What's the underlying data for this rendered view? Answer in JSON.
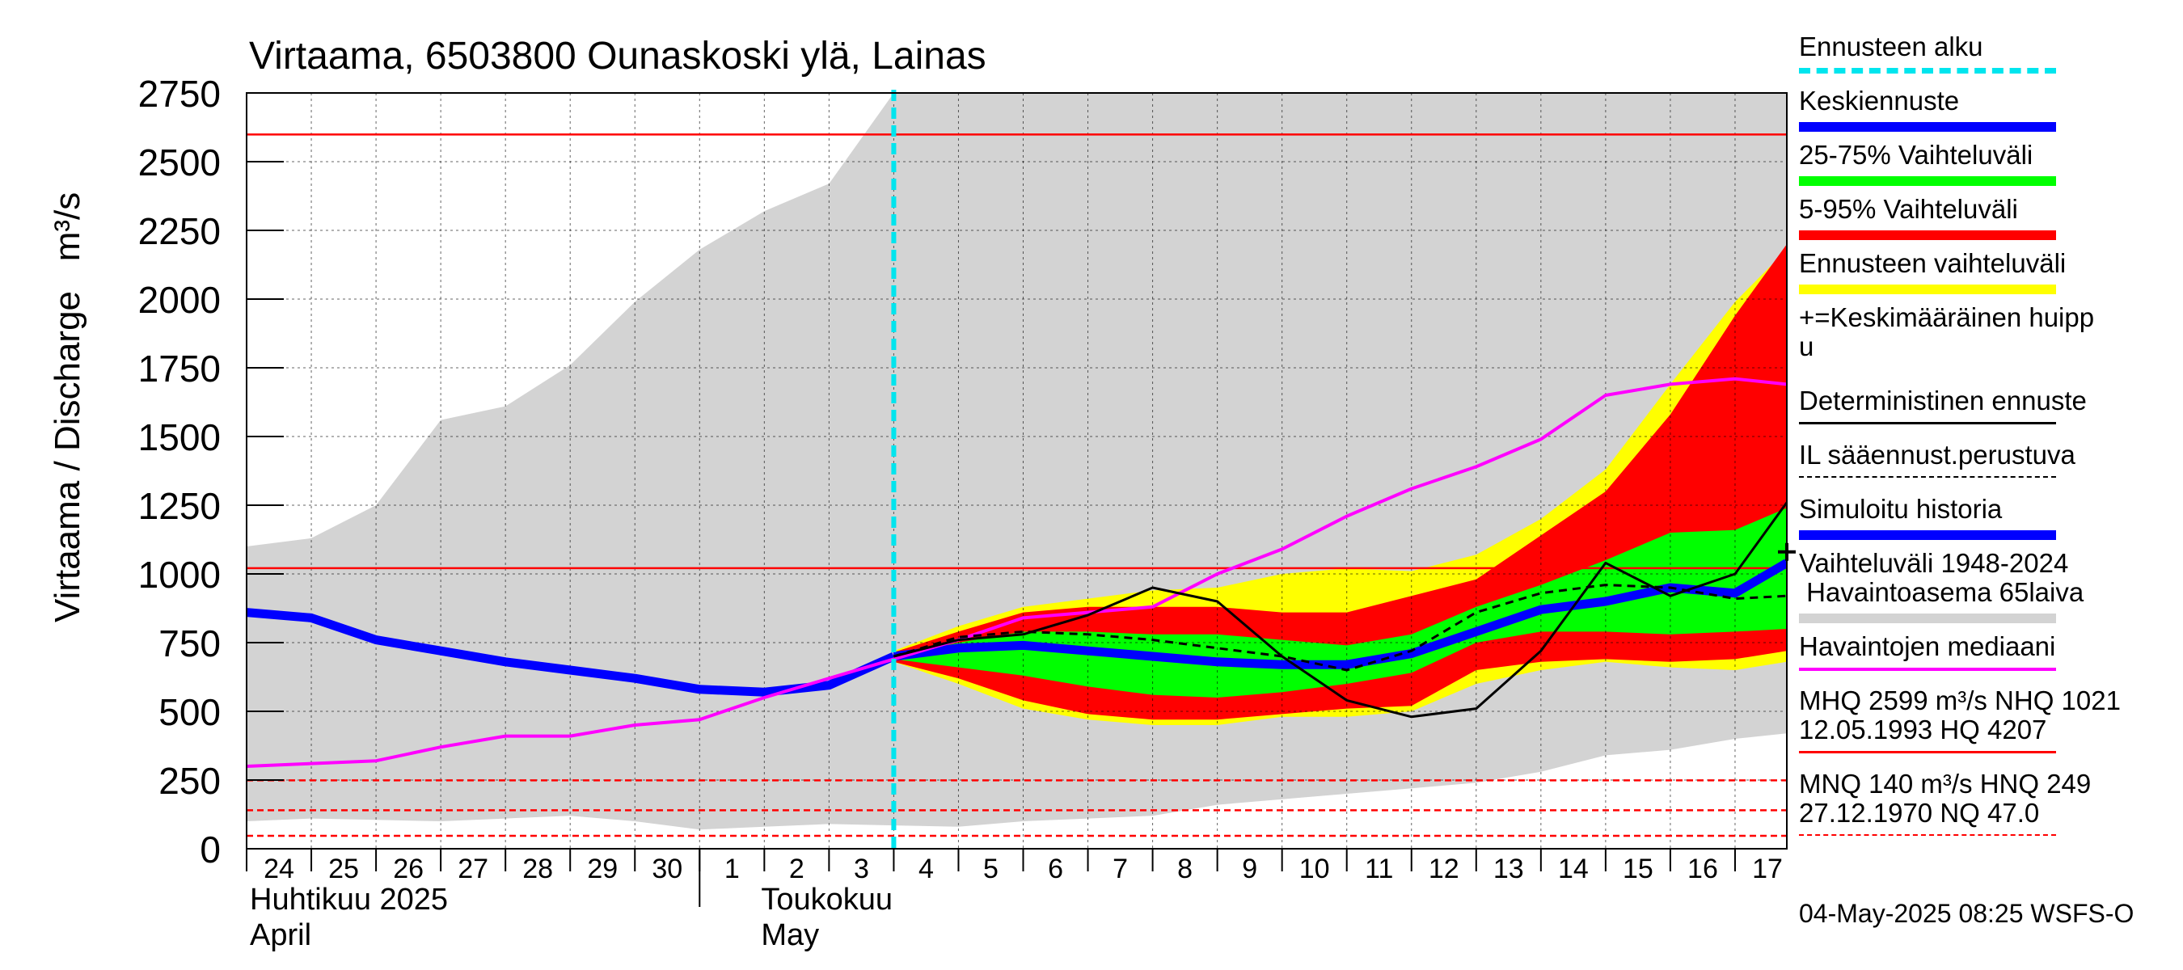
{
  "chart_data": {
    "type": "line",
    "title": "Virtaama, 6503800 Ounaskoski ylä, Lainas",
    "ylabel": "Virtaama / Discharge   m³/s",
    "ylim": [
      0,
      2750
    ],
    "yticks": [
      0,
      250,
      500,
      750,
      1000,
      1250,
      1500,
      1750,
      2000,
      2250,
      2500,
      2750
    ],
    "xlim": [
      0,
      23.8
    ],
    "x_tick_labels": [
      "24",
      "25",
      "26",
      "27",
      "28",
      "29",
      "30",
      "1",
      "2",
      "3",
      "4",
      "5",
      "6",
      "7",
      "8",
      "9",
      "10",
      "11",
      "12",
      "13",
      "14",
      "15",
      "16",
      "17"
    ],
    "x_tick_positions": [
      0.5,
      1.5,
      2.5,
      3.5,
      4.5,
      5.5,
      6.5,
      7.5,
      8.5,
      9.5,
      10.5,
      11.5,
      12.5,
      13.5,
      14.5,
      15.5,
      16.5,
      17.5,
      18.5,
      19.5,
      20.5,
      21.5,
      22.5,
      23.5
    ],
    "month_labels": [
      {
        "line1": "Huhtikuu  2025",
        "line2": "April",
        "x": 0
      },
      {
        "line1": "Toukokuu",
        "line2": "May",
        "x": 7.9
      }
    ],
    "month_separator_x": 7,
    "forecast_start_x": 10.0,
    "reference_lines": [
      {
        "name": "MHQ",
        "value": 2599,
        "style": "solid",
        "color": "#ff0000"
      },
      {
        "name": "NHQ",
        "value": 1021,
        "style": "solid",
        "color": "#ff0000"
      },
      {
        "name": "HNQ",
        "value": 249,
        "style": "dashed",
        "color": "#ff0000"
      },
      {
        "name": "MNQ",
        "value": 140,
        "style": "dashed",
        "color": "#ff0000"
      },
      {
        "name": "NQ",
        "value": 47,
        "style": "dashed",
        "color": "#ff0000"
      }
    ],
    "range_band": {
      "name": "Vaihteluväli 1948-2024",
      "x": [
        0,
        1,
        2,
        3,
        4,
        5,
        6,
        7,
        8,
        9,
        10,
        11,
        12,
        13,
        14,
        15,
        16,
        17,
        18,
        19,
        20,
        21,
        22,
        23,
        23.8
      ],
      "upper": [
        1100,
        1130,
        1250,
        1560,
        1610,
        1760,
        1990,
        2180,
        2320,
        2420,
        2750,
        2750,
        2750,
        2750,
        2750,
        2750,
        2750,
        2750,
        2750,
        2750,
        2750,
        2750,
        2750,
        2750,
        2750
      ],
      "lower": [
        100,
        110,
        105,
        100,
        110,
        120,
        100,
        70,
        80,
        90,
        85,
        80,
        100,
        110,
        120,
        160,
        180,
        200,
        220,
        240,
        280,
        340,
        360,
        400,
        420
      ]
    },
    "forecast_x": [
      10,
      11,
      12,
      13,
      14,
      15,
      16,
      17,
      18,
      19,
      20,
      21,
      22,
      23,
      23.8
    ],
    "band_5_95_outer_yellow": {
      "upper": [
        720,
        810,
        880,
        910,
        940,
        950,
        1000,
        1020,
        1010,
        1070,
        1200,
        1380,
        1690,
        1990,
        2180
      ],
      "lower": [
        680,
        600,
        510,
        470,
        450,
        450,
        480,
        480,
        500,
        600,
        650,
        680,
        660,
        650,
        680
      ]
    },
    "band_5_95": {
      "upper": [
        715,
        790,
        860,
        880,
        880,
        880,
        860,
        860,
        920,
        980,
        1140,
        1300,
        1580,
        1940,
        2200
      ],
      "lower": [
        680,
        620,
        540,
        490,
        470,
        470,
        490,
        510,
        520,
        650,
        680,
        690,
        680,
        690,
        720
      ]
    },
    "band_25_75": {
      "upper": [
        700,
        750,
        790,
        790,
        780,
        780,
        760,
        740,
        780,
        880,
        960,
        1050,
        1150,
        1160,
        1240
      ],
      "lower": [
        690,
        660,
        630,
        590,
        560,
        550,
        570,
        600,
        640,
        750,
        790,
        790,
        780,
        790,
        800
      ]
    },
    "series": [
      {
        "name": "Simuloitu historia",
        "color": "#0000ff",
        "x": [
          0,
          1,
          2,
          3,
          4,
          5,
          6,
          7,
          8,
          9,
          10
        ],
        "values": [
          860,
          840,
          760,
          720,
          680,
          650,
          620,
          580,
          570,
          595,
          700
        ]
      },
      {
        "name": "Keskiennuste",
        "color": "#0000ff",
        "x": [
          10,
          11,
          12,
          13,
          14,
          15,
          16,
          17,
          18,
          19,
          20,
          21,
          22,
          23,
          23.8
        ],
        "values": [
          700,
          730,
          740,
          720,
          700,
          680,
          670,
          670,
          710,
          790,
          870,
          900,
          950,
          930,
          1040
        ]
      },
      {
        "name": "Havaintojen mediaani",
        "color": "#ff00ff",
        "x": [
          0,
          1,
          2,
          3,
          4,
          5,
          6,
          7,
          8,
          9,
          10,
          11,
          12,
          13,
          14,
          15,
          16,
          17,
          18,
          19,
          20,
          21,
          22,
          23,
          23.8
        ],
        "values": [
          300,
          310,
          320,
          370,
          410,
          410,
          450,
          470,
          550,
          620,
          690,
          760,
          840,
          860,
          880,
          1000,
          1090,
          1210,
          1310,
          1390,
          1490,
          1650,
          1690,
          1710,
          1690
        ]
      },
      {
        "name": "Deterministinen ennuste",
        "color": "#000000",
        "x": [
          10,
          11,
          12,
          13,
          14,
          15,
          16,
          17,
          18,
          19,
          20,
          21,
          22,
          23,
          23.8
        ],
        "values": [
          700,
          760,
          780,
          850,
          950,
          900,
          700,
          540,
          480,
          510,
          720,
          1040,
          920,
          1000,
          1260
        ]
      },
      {
        "name": "IL sääennust.perustuva",
        "color": "#000000",
        "dashed": true,
        "x": [
          10,
          11,
          12,
          13,
          14,
          15,
          16,
          17,
          18,
          19,
          20,
          21,
          22,
          23,
          23.8
        ],
        "values": [
          700,
          770,
          790,
          780,
          760,
          730,
          700,
          650,
          720,
          860,
          930,
          960,
          950,
          910,
          920
        ]
      }
    ],
    "mean_peak": {
      "name": "Keskimääräinen huippu",
      "x": 23.8,
      "value": 1080
    }
  },
  "legend": {
    "items": [
      {
        "label": "Ennusteen alku",
        "kind": "dashed",
        "color": "#00e5ee"
      },
      {
        "label": "Keskiennuste",
        "kind": "thick",
        "color": "#0000ff"
      },
      {
        "label": "25-75% Vaihteluväli",
        "kind": "thick",
        "color": "#00ff00"
      },
      {
        "label": "5-95% Vaihteluväli",
        "kind": "thick",
        "color": "#ff0000"
      },
      {
        "label": "Ennusteen vaihteluväli",
        "kind": "thick",
        "color": "#ffff00"
      },
      {
        "label": "+=Keskimääräinen huipp",
        "label2": "u",
        "kind": "none",
        "color": "#000000"
      },
      {
        "label": "Deterministinen ennuste",
        "kind": "thin",
        "color": "#000000"
      },
      {
        "label": "IL sääennust.perustuva",
        "kind": "thin-dashed",
        "color": "#000000"
      },
      {
        "label": "Simuloitu historia",
        "kind": "thick",
        "color": "#0000ff"
      },
      {
        "label": "Vaihteluväli 1948-2024",
        "label2": " Havaintoasema 65laiva",
        "kind": "thick2",
        "color": "#d3d3d3"
      },
      {
        "label": "Havaintojen mediaani",
        "kind": "medium",
        "color": "#ff00ff"
      },
      {
        "label": "MHQ 2599 m³/s NHQ 1021",
        "label2": "12.05.1993 HQ 4207",
        "kind": "thin2",
        "color": "#ff0000"
      },
      {
        "label": "MNQ  140 m³/s HNQ  249",
        "label2": "27.12.1970 NQ 47.0",
        "kind": "thin-dashed2",
        "color": "#ff0000"
      }
    ]
  },
  "footer": {
    "timestamp": "04-May-2025 08:25 WSFS-O"
  },
  "colors": {
    "range_band": "#d3d3d3",
    "yellow": "#ffff00",
    "red": "#ff0000",
    "green": "#00ff00",
    "blue": "#0000ff",
    "magenta": "#ff00ff",
    "cyan": "#00e5ee"
  }
}
